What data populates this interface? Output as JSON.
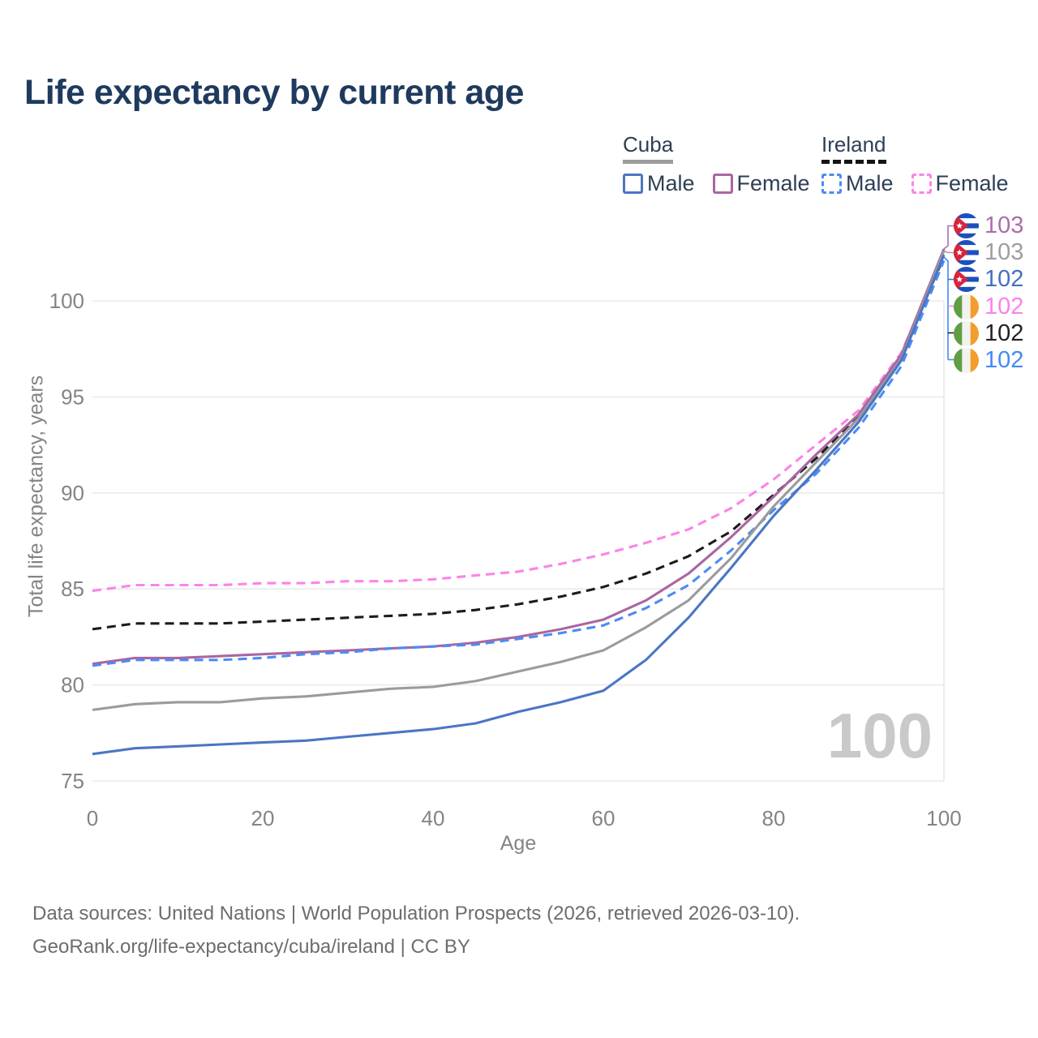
{
  "title": "Life expectancy by current age",
  "legend": {
    "groups": [
      {
        "name": "Cuba",
        "line_style": "solid",
        "underline_color": "#9b9b9b",
        "items": [
          {
            "label": "Male",
            "color": "#4a76c4",
            "dashed": false
          },
          {
            "label": "Female",
            "color": "#aa66a0",
            "dashed": false
          }
        ]
      },
      {
        "name": "Ireland",
        "line_style": "dashed",
        "underline_color": "#141414",
        "items": [
          {
            "label": "Male",
            "color": "#4b8bf5",
            "dashed": true
          },
          {
            "label": "Female",
            "color": "#fb84e6",
            "dashed": true
          }
        ]
      }
    ]
  },
  "chart_data": {
    "type": "line",
    "title": "Life expectancy by current age",
    "xlabel": "Age",
    "ylabel": "Total life expectancy, years",
    "xticks": [
      0,
      20,
      40,
      60,
      80,
      100
    ],
    "yticks": [
      75,
      80,
      85,
      90,
      95,
      100
    ],
    "xlim": [
      0,
      100
    ],
    "ylim": [
      74,
      104
    ],
    "grid": "horizontal",
    "x": [
      0,
      5,
      10,
      15,
      20,
      25,
      30,
      35,
      40,
      45,
      50,
      55,
      60,
      65,
      70,
      75,
      80,
      85,
      90,
      95,
      100
    ],
    "series": [
      {
        "name": "Ireland Female",
        "country": "Ireland",
        "sex": "Female",
        "color": "#fb84e6",
        "dashed": true,
        "end_label": "102",
        "values": [
          84.9,
          85.2,
          85.2,
          85.2,
          85.3,
          85.3,
          85.4,
          85.4,
          85.5,
          85.7,
          85.9,
          86.3,
          86.8,
          87.4,
          88.1,
          89.2,
          90.7,
          92.5,
          94.3,
          97.3,
          102.4
        ]
      },
      {
        "name": "Ireland Both sexes",
        "country": "Ireland",
        "sex": "Both",
        "color": "#1c1c1c",
        "dashed": true,
        "end_label": "102",
        "values": [
          82.9,
          83.2,
          83.2,
          83.2,
          83.3,
          83.4,
          83.5,
          83.6,
          83.7,
          83.9,
          84.2,
          84.6,
          85.1,
          85.8,
          86.7,
          88.0,
          89.9,
          91.8,
          94.0,
          97.1,
          102.3
        ]
      },
      {
        "name": "Cuba Female",
        "country": "Cuba",
        "sex": "Female",
        "color": "#aa66a0",
        "dashed": false,
        "end_label": "103",
        "values": [
          81.1,
          81.4,
          81.4,
          81.5,
          81.6,
          81.7,
          81.8,
          81.9,
          82.0,
          82.2,
          82.5,
          82.9,
          83.4,
          84.4,
          85.8,
          87.7,
          89.8,
          92.0,
          94.1,
          97.2,
          102.7
        ]
      },
      {
        "name": "Ireland Male",
        "country": "Ireland",
        "sex": "Male",
        "color": "#4b8bf5",
        "dashed": true,
        "end_label": "102",
        "values": [
          81.0,
          81.3,
          81.3,
          81.3,
          81.4,
          81.6,
          81.7,
          81.9,
          82.0,
          82.1,
          82.4,
          82.7,
          83.1,
          84.0,
          85.2,
          87.0,
          89.1,
          91.0,
          93.4,
          96.6,
          102.1
        ]
      },
      {
        "name": "Cuba Both sexes",
        "country": "Cuba",
        "sex": "Both",
        "color": "#9b9b9b",
        "dashed": false,
        "end_label": "103",
        "values": [
          78.7,
          79.0,
          79.1,
          79.1,
          79.3,
          79.4,
          79.6,
          79.8,
          79.9,
          80.2,
          80.7,
          81.2,
          81.8,
          83.0,
          84.4,
          86.6,
          89.3,
          91.6,
          93.9,
          97.0,
          102.6
        ]
      },
      {
        "name": "Cuba Male",
        "country": "Cuba",
        "sex": "Male",
        "color": "#4a76c4",
        "dashed": false,
        "end_label": "102",
        "values": [
          76.4,
          76.7,
          76.8,
          76.9,
          77.0,
          77.1,
          77.3,
          77.5,
          77.7,
          78.0,
          78.6,
          79.1,
          79.7,
          81.3,
          83.5,
          86.1,
          88.8,
          91.2,
          93.7,
          96.9,
          102.4
        ]
      }
    ],
    "legend_position": "top-right"
  },
  "end_labels": [
    {
      "flag": "cuba-flag-icon",
      "country": "Cuba",
      "series": "Cuba Female",
      "value": "103",
      "color": "#ab6dab"
    },
    {
      "flag": "cuba-flag-icon",
      "country": "Cuba",
      "series": "Cuba Both sexes",
      "value": "103",
      "color": "#9e9e9e"
    },
    {
      "flag": "cuba-flag-icon",
      "country": "Cuba",
      "series": "Cuba Male",
      "value": "102",
      "color": "#4470c2"
    },
    {
      "flag": "ireland-flag-icon",
      "country": "Ireland",
      "series": "Ireland Female",
      "value": "102",
      "color": "#fa82ec"
    },
    {
      "flag": "ireland-flag-icon",
      "country": "Ireland",
      "series": "Ireland Both sexes",
      "value": "102",
      "color": "#222222"
    },
    {
      "flag": "ireland-flag-icon",
      "country": "Ireland",
      "series": "Ireland Male",
      "value": "102",
      "color": "#4388f7"
    }
  ],
  "watermark": {
    "value": "100"
  },
  "footer": {
    "line1": "Data sources: United Nations | World Population Prospects (2026, retrieved 2026-03-10).",
    "line2": "GeoRank.org/life-expectancy/cuba/ireland | CC BY"
  }
}
